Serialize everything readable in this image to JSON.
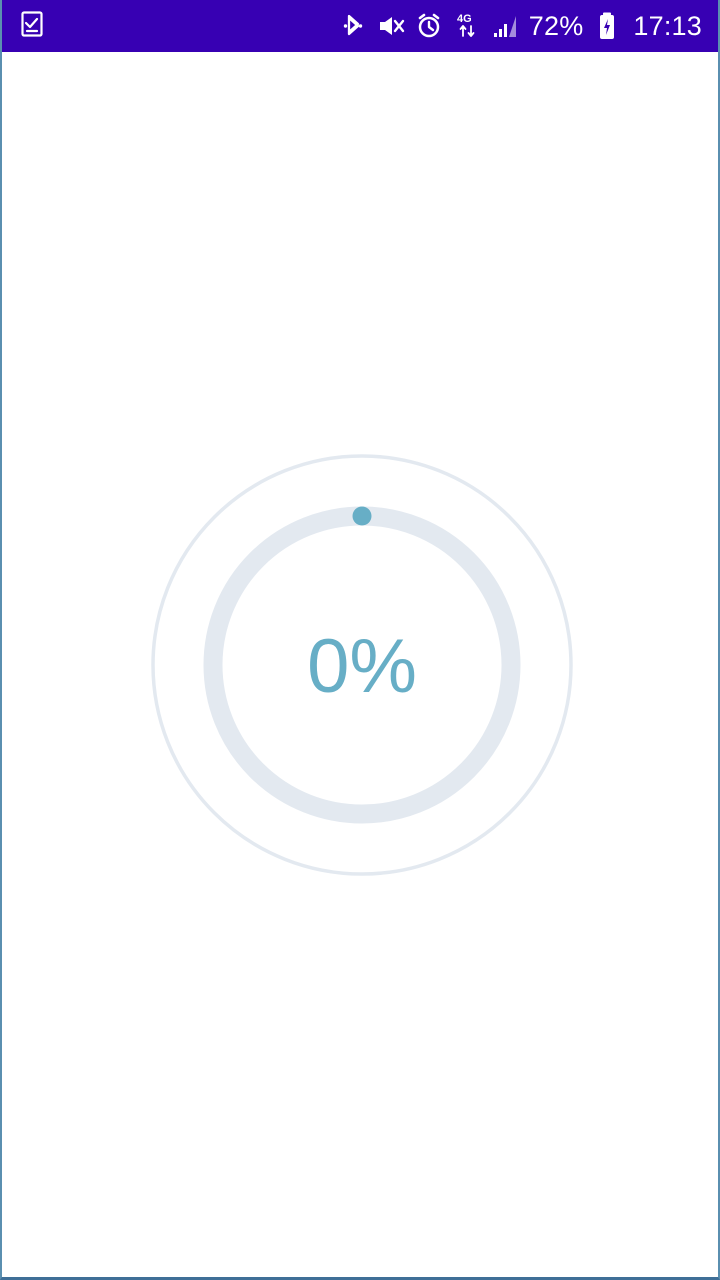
{
  "status_bar": {
    "battery_percent": "72%",
    "time": "17:13",
    "network": "4G",
    "colors": {
      "background": "#3700b3",
      "foreground": "#ffffff"
    },
    "icons": [
      "checklist-icon",
      "bluetooth-icon",
      "mute-icon",
      "alarm-icon",
      "4g-icon",
      "signal-icon",
      "battery-icon"
    ]
  },
  "loader": {
    "progress_label": "0%",
    "progress": 0,
    "colors": {
      "ring": "#e3e9f0",
      "text": "#67aec6"
    }
  }
}
